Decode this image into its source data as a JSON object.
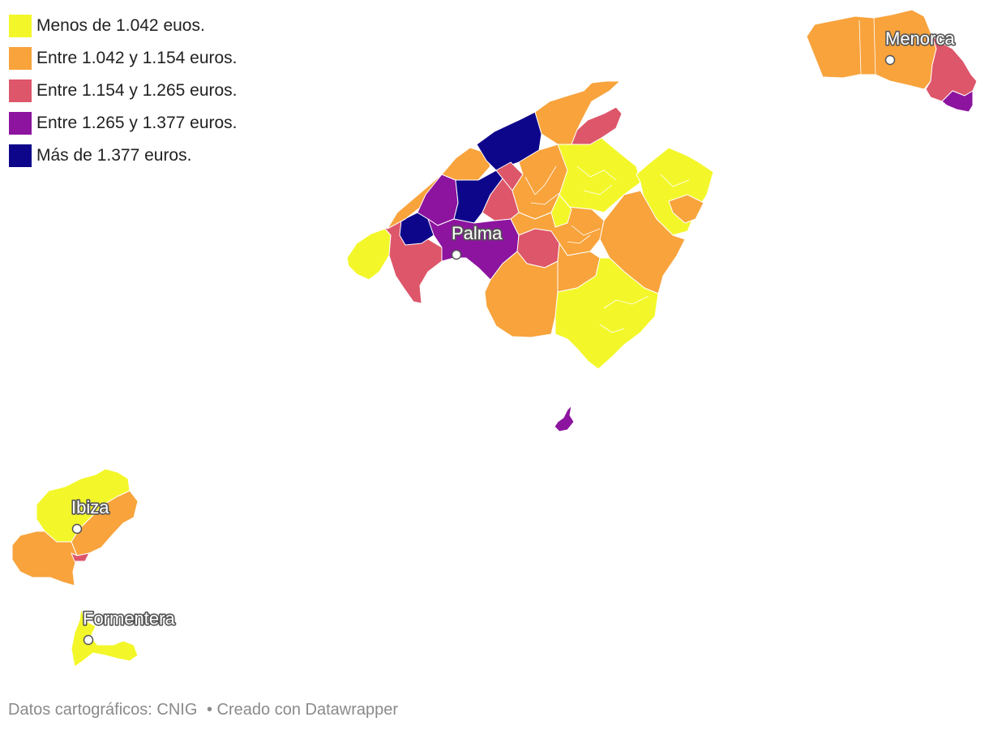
{
  "legend": [
    {
      "label": "Menos de 1.042 euos.",
      "color": "#F3F72A"
    },
    {
      "label": "Entre 1.042 y 1.154 euros.",
      "color": "#F8A33C"
    },
    {
      "label": "Entre 1.154 y 1.265 euros.",
      "color": "#DD566A"
    },
    {
      "label": "Entre 1.265 y 1.377 euros.",
      "color": "#8C149F"
    },
    {
      "label": "Más de 1.377 euros.",
      "color": "#0E068A"
    }
  ],
  "cities": {
    "palma": "Palma",
    "menorca": "Menorca",
    "ibiza": "Ibiza",
    "formentera": "Formentera"
  },
  "footer": {
    "source": "Datos cartográficos: CNIG",
    "credit": "• Creado con Datawrapper"
  }
}
